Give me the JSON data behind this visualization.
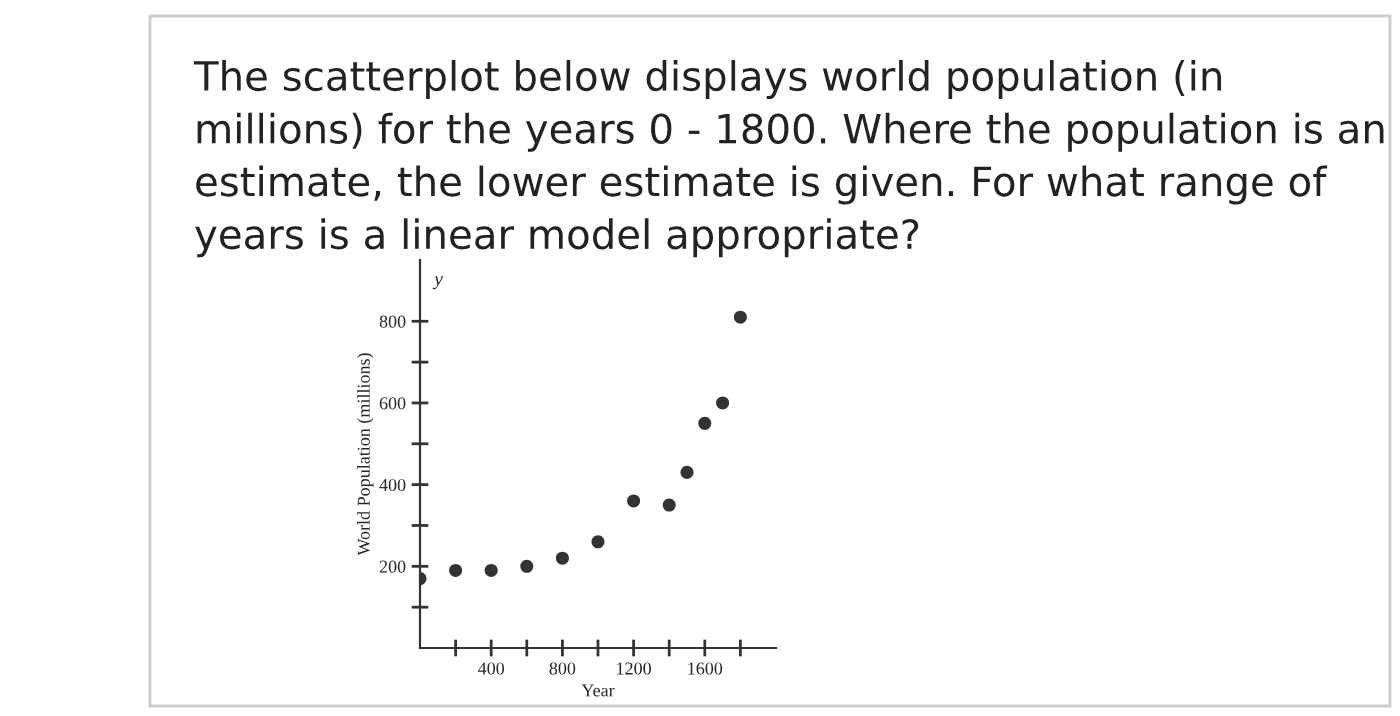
{
  "chart_data": {
    "type": "scatter",
    "title": "The scatterplot below displays world population (in millions) for the years 0 - 1800. Where the population is an estimate, the lower estimate is given. For what range of years is a linear model appropriate?",
    "xlabel": "Year",
    "ylabel": "World Population (millions)",
    "annotations": [
      "y"
    ],
    "x": [
      0,
      200,
      400,
      600,
      800,
      1000,
      1200,
      1400,
      1500,
      1600,
      1700,
      1800
    ],
    "values": [
      170,
      190,
      190,
      200,
      220,
      260,
      360,
      350,
      430,
      550,
      600,
      810
    ],
    "color": "#333333",
    "marker": "circle",
    "grid": false,
    "xlim": [
      0,
      2000
    ],
    "ylim": [
      0,
      950
    ],
    "xticks": [
      {
        "value": 200,
        "label": null
      },
      400,
      {
        "value": 600,
        "label": null
      },
      800,
      {
        "value": 1000,
        "label": null
      },
      1200,
      {
        "value": 1400,
        "label": null
      },
      1600,
      {
        "value": 1800,
        "label": null
      }
    ],
    "yticks": [
      {
        "value": 100,
        "label": null
      },
      200,
      {
        "value": 300,
        "label": null
      },
      400,
      {
        "value": 500,
        "label": null
      },
      600,
      {
        "value": 700,
        "label": null
      },
      800
    ]
  }
}
